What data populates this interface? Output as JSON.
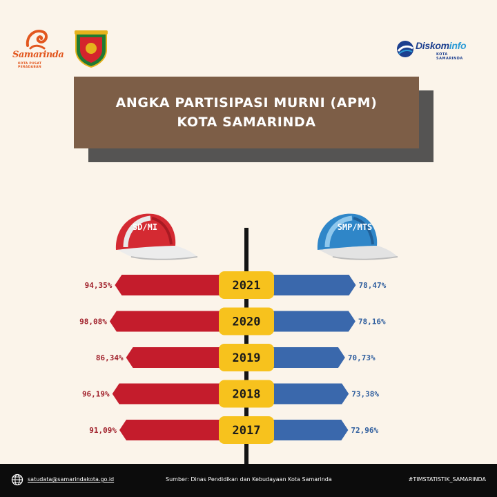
{
  "header": {
    "logo_samarinda": {
      "word": "Samarinda",
      "tagline": "KOTA PUSAT PERADABAN"
    },
    "logo_diskominfo": {
      "name_a": "Diskom",
      "name_b": "info",
      "sub": "KOTA SAMARINDA"
    }
  },
  "title": {
    "line1": "ANGKA PARTISIPASI MURNI (APM)",
    "line2": "KOTA SAMARINDA"
  },
  "colors": {
    "sd": "#c41c2c",
    "smp": "#3a68ac",
    "year_badge": "#f7c21d",
    "title_bg": "#7d5e47",
    "background": "#fbf4ea"
  },
  "chart_data": {
    "type": "bar",
    "orientation": "diverging-horizontal",
    "categories": [
      "2021",
      "2020",
      "2019",
      "2018",
      "2017"
    ],
    "series": [
      {
        "name": "SD/MI",
        "values": [
          94.35,
          98.08,
          86.34,
          96.19,
          91.09
        ],
        "labels": [
          "94,35%",
          "98,08%",
          "86,34%",
          "96,19%",
          "91,09%"
        ]
      },
      {
        "name": "SMP/MTS",
        "values": [
          78.47,
          78.16,
          70.73,
          73.38,
          72.96
        ],
        "labels": [
          "78,47%",
          "78,16%",
          "70,73%",
          "73,38%",
          "72,96%"
        ]
      }
    ]
  },
  "footer": {
    "email": "satudata@samarindakota.go.id",
    "source": "Sumber: Dinas Pendidikan dan Kebudayaan Kota Samarinda",
    "hashtag": "#TIMSTATISTIK_SAMARINDA"
  }
}
